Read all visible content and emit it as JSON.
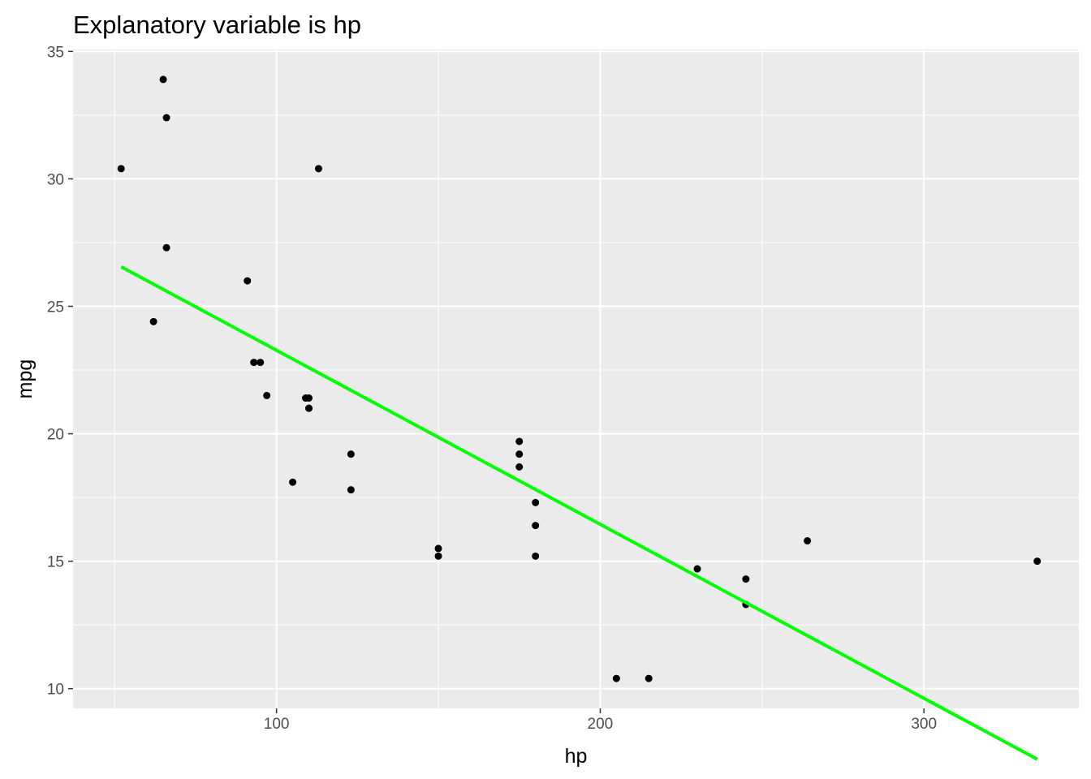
{
  "chart_data": {
    "type": "scatter",
    "title": "Explanatory variable is hp",
    "xlabel": "hp",
    "ylabel": "mpg",
    "xlim": [
      37.15,
      347.85
    ],
    "ylim": [
      9.225,
      35.075
    ],
    "x_ticks": [
      100,
      200,
      300
    ],
    "x_tick_labels": [
      "100",
      "200",
      "300"
    ],
    "y_ticks": [
      10,
      15,
      20,
      25,
      30,
      35
    ],
    "y_tick_labels": [
      "10",
      "15",
      "20",
      "25",
      "30",
      "35"
    ],
    "grid": true,
    "legend": "none",
    "points": [
      {
        "x": 110,
        "y": 21.0
      },
      {
        "x": 110,
        "y": 21.0
      },
      {
        "x": 93,
        "y": 22.8
      },
      {
        "x": 110,
        "y": 21.4
      },
      {
        "x": 175,
        "y": 18.7
      },
      {
        "x": 105,
        "y": 18.1
      },
      {
        "x": 245,
        "y": 14.3
      },
      {
        "x": 62,
        "y": 24.4
      },
      {
        "x": 95,
        "y": 22.8
      },
      {
        "x": 123,
        "y": 19.2
      },
      {
        "x": 123,
        "y": 17.8
      },
      {
        "x": 180,
        "y": 16.4
      },
      {
        "x": 180,
        "y": 17.3
      },
      {
        "x": 180,
        "y": 15.2
      },
      {
        "x": 205,
        "y": 10.4
      },
      {
        "x": 215,
        "y": 10.4
      },
      {
        "x": 230,
        "y": 14.7
      },
      {
        "x": 66,
        "y": 32.4
      },
      {
        "x": 52,
        "y": 30.4
      },
      {
        "x": 65,
        "y": 33.9
      },
      {
        "x": 97,
        "y": 21.5
      },
      {
        "x": 150,
        "y": 15.5
      },
      {
        "x": 150,
        "y": 15.2
      },
      {
        "x": 245,
        "y": 13.3
      },
      {
        "x": 175,
        "y": 19.2
      },
      {
        "x": 66,
        "y": 27.3
      },
      {
        "x": 91,
        "y": 26.0
      },
      {
        "x": 113,
        "y": 30.4
      },
      {
        "x": 264,
        "y": 15.8
      },
      {
        "x": 175,
        "y": 19.7
      },
      {
        "x": 335,
        "y": 15.0
      },
      {
        "x": 109,
        "y": 21.4
      }
    ],
    "fit_line": {
      "x": [
        52,
        335
      ],
      "y": [
        26.55,
        7.23
      ],
      "color": "#00ff00"
    },
    "point_color": "#000000",
    "panel_background": "#ebebeb",
    "grid_color": "#ffffff"
  }
}
